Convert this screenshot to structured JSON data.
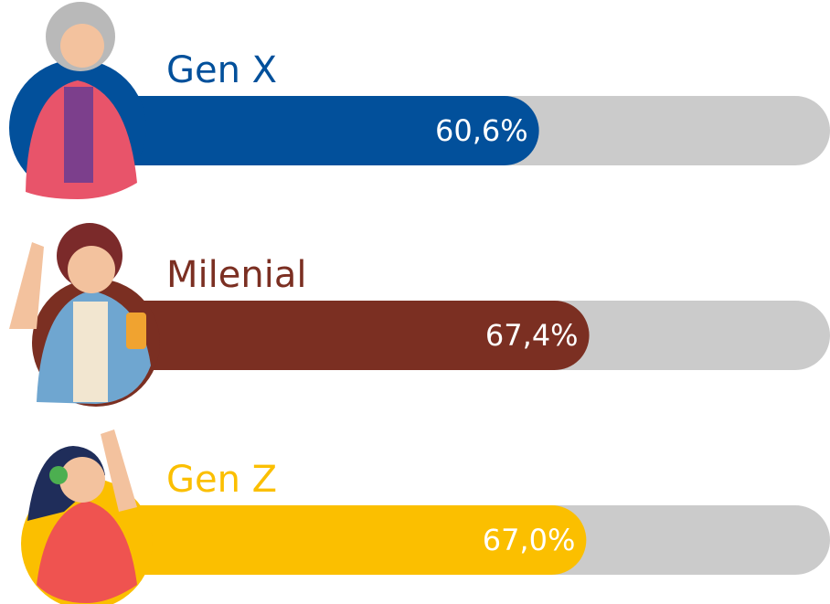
{
  "chart_data": {
    "type": "bar",
    "orientation": "horizontal",
    "categories": [
      "Gen X",
      "Milenial",
      "Gen Z"
    ],
    "values": [
      60.6,
      67.4,
      67.0
    ],
    "value_labels": [
      "60,6%",
      "67,4%",
      "67,0%"
    ],
    "colors": [
      "#02509b",
      "#7b2f22",
      "#fbbf00"
    ],
    "track_color": "#cbcbcb",
    "xlim": [
      0,
      100
    ]
  }
}
